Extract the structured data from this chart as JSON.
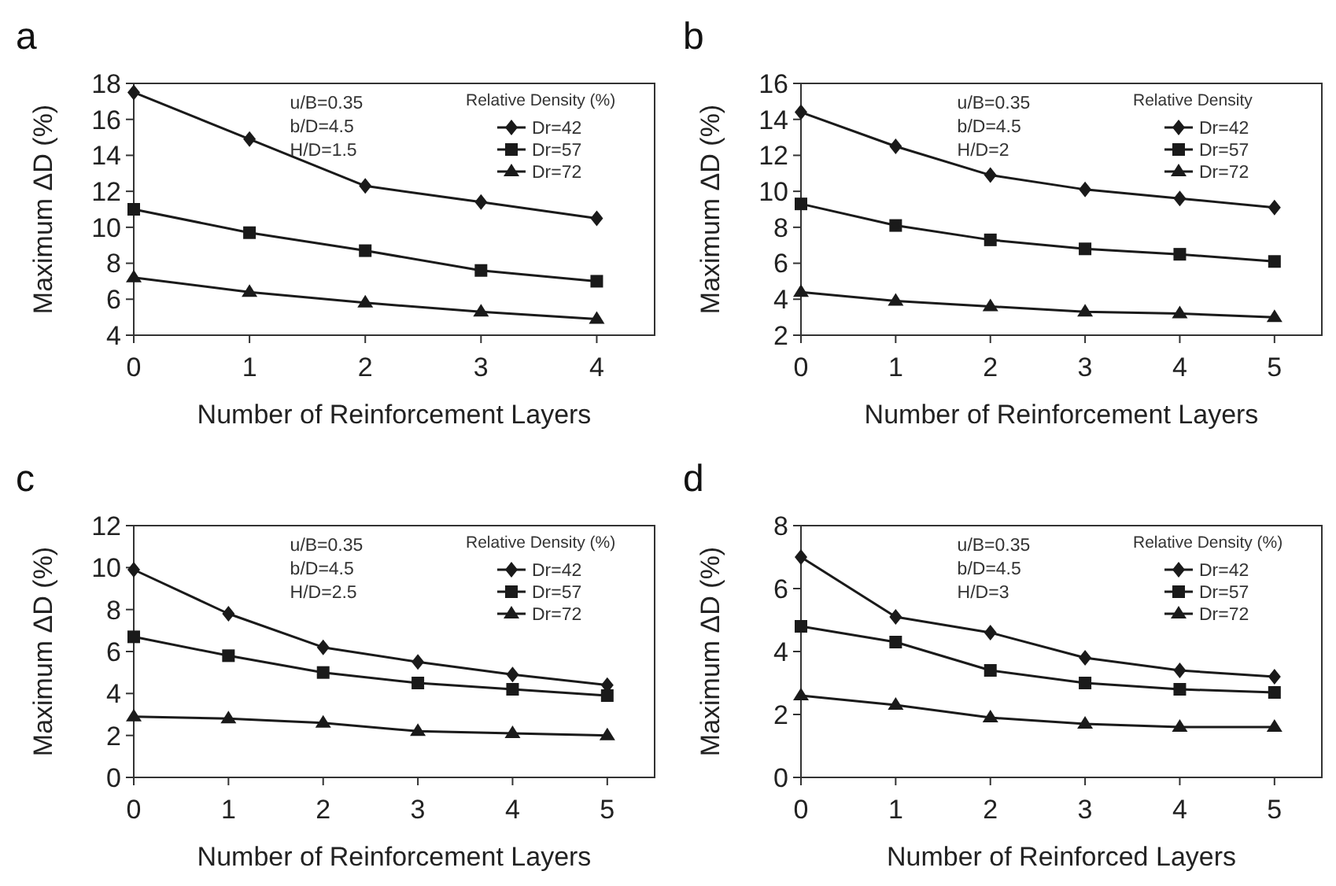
{
  "chart_data": [
    {
      "type": "line",
      "title": "a",
      "xlabel": "Number of Reinforcement Layers",
      "ylabel": "Maximum ΔD (%)",
      "legend_title": "Relative Density (%)",
      "legend": "top right",
      "x": [
        0,
        1,
        2,
        3,
        4
      ],
      "xlim": [
        0,
        4.5
      ],
      "xticks": [
        0,
        1,
        2,
        3,
        4
      ],
      "ylim": [
        4,
        18
      ],
      "yticks": [
        4,
        6,
        8,
        10,
        12,
        14,
        16,
        18
      ],
      "grid": false,
      "annotations": [
        "u/B=0.35",
        "b/D=4.5",
        "H/D=1.5"
      ],
      "series": [
        {
          "name": "Dr=42",
          "color": "#1a1a1a",
          "marker": "diamond",
          "values": [
            17.5,
            14.9,
            12.3,
            11.4,
            10.5
          ]
        },
        {
          "name": "Dr=57",
          "color": "#1a1a1a",
          "marker": "square",
          "values": [
            11.0,
            9.7,
            8.7,
            7.6,
            7.0
          ]
        },
        {
          "name": "Dr=72",
          "color": "#1a1a1a",
          "marker": "triangle",
          "values": [
            7.2,
            6.4,
            5.8,
            5.3,
            4.9
          ]
        }
      ]
    },
    {
      "type": "line",
      "title": "b",
      "xlabel": "Number of Reinforcement Layers",
      "ylabel": "Maximum ΔD (%)",
      "legend_title": "Relative Density",
      "legend": "top right",
      "x": [
        0,
        1,
        2,
        3,
        4,
        5
      ],
      "xlim": [
        0,
        5.5
      ],
      "xticks": [
        0,
        1,
        2,
        3,
        4,
        5
      ],
      "ylim": [
        2,
        16
      ],
      "yticks": [
        2,
        4,
        6,
        8,
        10,
        12,
        14,
        16
      ],
      "grid": false,
      "annotations": [
        "u/B=0.35",
        "b/D=4.5",
        "H/D=2"
      ],
      "series": [
        {
          "name": "Dr=42",
          "color": "#1a1a1a",
          "marker": "diamond",
          "values": [
            14.4,
            12.5,
            10.9,
            10.1,
            9.6,
            9.1
          ]
        },
        {
          "name": "Dr=57",
          "color": "#1a1a1a",
          "marker": "square",
          "values": [
            9.3,
            8.1,
            7.3,
            6.8,
            6.5,
            6.1
          ]
        },
        {
          "name": "Dr=72",
          "color": "#1a1a1a",
          "marker": "triangle",
          "values": [
            4.4,
            3.9,
            3.6,
            3.3,
            3.2,
            3.0
          ]
        }
      ]
    },
    {
      "type": "line",
      "title": "c",
      "xlabel": "Number of Reinforcement Layers",
      "ylabel": "Maximum ΔD (%)",
      "legend_title": "Relative Density (%)",
      "legend": "top right",
      "x": [
        0,
        1,
        2,
        3,
        4,
        5
      ],
      "xlim": [
        0,
        5.5
      ],
      "xticks": [
        0,
        1,
        2,
        3,
        4,
        5
      ],
      "ylim": [
        0,
        12
      ],
      "yticks": [
        0,
        2,
        4,
        6,
        8,
        10,
        12
      ],
      "grid": false,
      "annotations": [
        "u/B=0.35",
        "b/D=4.5",
        "H/D=2.5"
      ],
      "series": [
        {
          "name": "Dr=42",
          "color": "#1a1a1a",
          "marker": "diamond",
          "values": [
            9.9,
            7.8,
            6.2,
            5.5,
            4.9,
            4.4
          ]
        },
        {
          "name": "Dr=57",
          "color": "#1a1a1a",
          "marker": "square",
          "values": [
            6.7,
            5.8,
            5.0,
            4.5,
            4.2,
            3.9
          ]
        },
        {
          "name": "Dr=72",
          "color": "#1a1a1a",
          "marker": "triangle",
          "values": [
            2.9,
            2.8,
            2.6,
            2.2,
            2.1,
            2.0
          ]
        }
      ]
    },
    {
      "type": "line",
      "title": "d",
      "xlabel": "Number of Reinforced Layers",
      "ylabel": "Maximum ΔD (%)",
      "legend_title": "Relative Density (%)",
      "legend": "top right",
      "x": [
        0,
        1,
        2,
        3,
        4,
        5
      ],
      "xlim": [
        0,
        5.5
      ],
      "xticks": [
        0,
        1,
        2,
        3,
        4,
        5
      ],
      "ylim": [
        0,
        8
      ],
      "yticks": [
        0,
        2,
        4,
        6,
        8
      ],
      "grid": false,
      "annotations": [
        "u/B=0.35",
        "b/D=4.5",
        "H/D=3"
      ],
      "series": [
        {
          "name": "Dr=42",
          "color": "#1a1a1a",
          "marker": "diamond",
          "values": [
            7.0,
            5.1,
            4.6,
            3.8,
            3.4,
            3.2
          ]
        },
        {
          "name": "Dr=57",
          "color": "#1a1a1a",
          "marker": "square",
          "values": [
            4.8,
            4.3,
            3.4,
            3.0,
            2.8,
            2.7
          ]
        },
        {
          "name": "Dr=72",
          "color": "#1a1a1a",
          "marker": "triangle",
          "values": [
            2.6,
            2.3,
            1.9,
            1.7,
            1.6,
            1.6
          ]
        }
      ]
    }
  ]
}
